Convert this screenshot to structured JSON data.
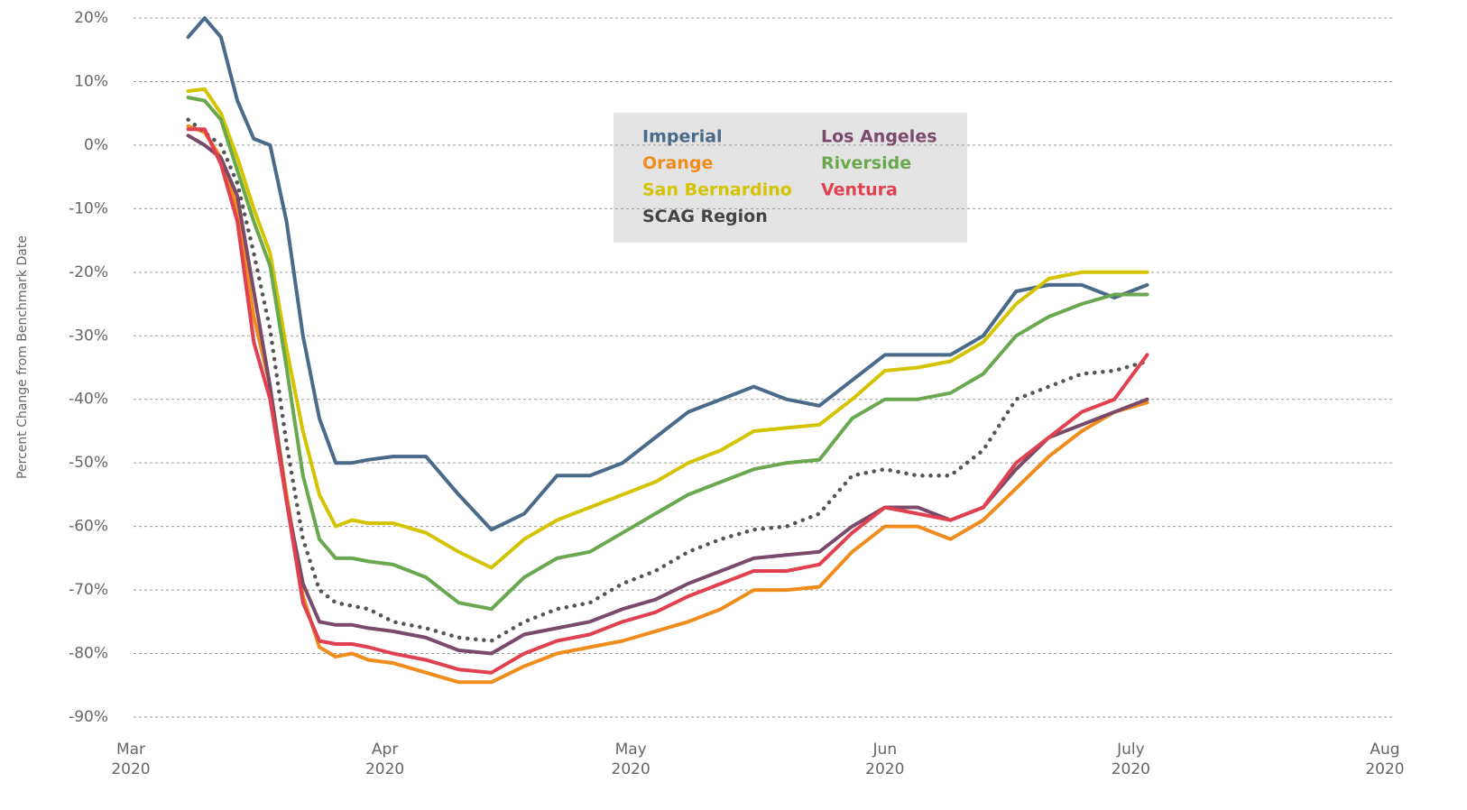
{
  "chart_data": {
    "type": "line",
    "y_label": "Percent Change from Benchmark Date",
    "x": [
      "2020-03-08",
      "2020-03-10",
      "2020-03-12",
      "2020-03-14",
      "2020-03-16",
      "2020-03-18",
      "2020-03-20",
      "2020-03-22",
      "2020-03-24",
      "2020-03-26",
      "2020-03-28",
      "2020-03-30",
      "2020-04-02",
      "2020-04-06",
      "2020-04-10",
      "2020-04-14",
      "2020-04-18",
      "2020-04-22",
      "2020-04-26",
      "2020-04-30",
      "2020-05-04",
      "2020-05-08",
      "2020-05-12",
      "2020-05-16",
      "2020-05-20",
      "2020-05-24",
      "2020-05-28",
      "2020-06-01",
      "2020-06-05",
      "2020-06-09",
      "2020-06-13",
      "2020-06-17",
      "2020-06-21",
      "2020-06-25",
      "2020-06-29",
      "2020-07-03"
    ],
    "series": [
      {
        "name": "Imperial",
        "color": "#4a6a8a",
        "values": [
          17,
          20,
          17,
          7,
          1,
          0,
          -12,
          -30,
          -43,
          -50,
          -50,
          -49.5,
          -49,
          -49,
          -55,
          -60.5,
          -58,
          -52,
          -52,
          -50,
          -46,
          -42,
          -40,
          -38,
          -40,
          -41,
          -37,
          -33,
          -33,
          -33,
          -30,
          -23,
          -22,
          -22,
          -24,
          -22
        ]
      },
      {
        "name": "Orange",
        "color": "#f08c1c",
        "values": [
          3,
          2,
          -2,
          -10,
          -27,
          -38,
          -55,
          -71,
          -79,
          -80.5,
          -80,
          -81,
          -81.5,
          -83,
          -84.5,
          -84.5,
          -82,
          -80,
          -79,
          -78,
          -76.5,
          -75,
          -73,
          -70,
          -70,
          -69.5,
          -64,
          -60,
          -60,
          -62,
          -59,
          -54,
          -49,
          -45,
          -42,
          -40.5
        ]
      },
      {
        "name": "San Bernardino",
        "color": "#d4c400",
        "values": [
          8.5,
          8.8,
          5,
          -2,
          -10,
          -17,
          -32,
          -45,
          -55,
          -60,
          -59,
          -59.5,
          -59.5,
          -61,
          -64,
          -66.5,
          -62,
          -59,
          -57,
          -55,
          -53,
          -50,
          -48,
          -45,
          -44.5,
          -44,
          -40,
          -35.5,
          -35,
          -34,
          -31,
          -25,
          -21,
          -20,
          -20,
          -20
        ]
      },
      {
        "name": "SCAG Region",
        "color": "#555555",
        "style": "dotted",
        "values": [
          4,
          2,
          0,
          -6,
          -17,
          -29,
          -47,
          -62,
          -70,
          -72,
          -72.5,
          -73,
          -75,
          -76,
          -77.5,
          -78,
          -75,
          -73,
          -72,
          -69,
          -67,
          -64,
          -62,
          -60.5,
          -60,
          -58,
          -52,
          -51,
          -52,
          -52,
          -48,
          -40,
          -38,
          -36,
          -35.5,
          -34
        ]
      },
      {
        "name": "Los Angeles",
        "color": "#7a4a6a",
        "values": [
          1.5,
          0,
          -2,
          -8,
          -23,
          -38,
          -56,
          -69,
          -75,
          -75.5,
          -75.5,
          -76,
          -76.5,
          -77.5,
          -79.5,
          -80,
          -77,
          -76,
          -75,
          -73,
          -71.5,
          -69,
          -67,
          -65,
          -64.5,
          -64,
          -60,
          -57,
          -57,
          -59,
          -57,
          -51,
          -46,
          -44,
          -42,
          -40
        ]
      },
      {
        "name": "Riverside",
        "color": "#6aa84f",
        "values": [
          7.5,
          7,
          4,
          -4,
          -12,
          -19,
          -35,
          -52,
          -62,
          -65,
          -65,
          -65.5,
          -66,
          -68,
          -72,
          -73,
          -68,
          -65,
          -64,
          -61,
          -58,
          -55,
          -53,
          -51,
          -50,
          -49.5,
          -43,
          -40,
          -40,
          -39,
          -36,
          -30,
          -27,
          -25,
          -23.5,
          -23.5
        ]
      },
      {
        "name": "Ventura",
        "color": "#e04050",
        "values": [
          2.5,
          2.5,
          -3,
          -12,
          -31,
          -40,
          -56,
          -72,
          -78,
          -78.5,
          -78.5,
          -79,
          -80,
          -81,
          -82.5,
          -83,
          -80,
          -78,
          -77,
          -75,
          -73.5,
          -71,
          -69,
          -67,
          -67,
          -66,
          -61,
          -57,
          -58,
          -59,
          -57,
          -50,
          -46,
          -42,
          -40,
          -33
        ]
      }
    ],
    "xlim": [
      "2020-03-01",
      "2020-08-01"
    ],
    "xticks": [
      {
        "value": "2020-03-01",
        "label": "Mar 2020"
      },
      {
        "value": "2020-04-01",
        "label": "Apr 2020"
      },
      {
        "value": "2020-05-01",
        "label": "May 2020"
      },
      {
        "value": "2020-06-01",
        "label": "Jun 2020"
      },
      {
        "value": "2020-07-01",
        "label": "July 2020"
      },
      {
        "value": "2020-08-01",
        "label": "Aug 2020"
      }
    ],
    "ylim": [
      -90,
      20
    ],
    "yticks": [
      {
        "value": -90,
        "label": "-90%"
      },
      {
        "value": -80,
        "label": "-80%"
      },
      {
        "value": -70,
        "label": "-70%"
      },
      {
        "value": -60,
        "label": "-60%"
      },
      {
        "value": -50,
        "label": "-50%"
      },
      {
        "value": -40,
        "label": "-40%"
      },
      {
        "value": -30,
        "label": "-30%"
      },
      {
        "value": -20,
        "label": "-20%"
      },
      {
        "value": -10,
        "label": "-10%"
      },
      {
        "value": 0,
        "label": "0%"
      },
      {
        "value": 10,
        "label": "10%"
      },
      {
        "value": 20,
        "label": "20%"
      }
    ],
    "grid": true
  }
}
